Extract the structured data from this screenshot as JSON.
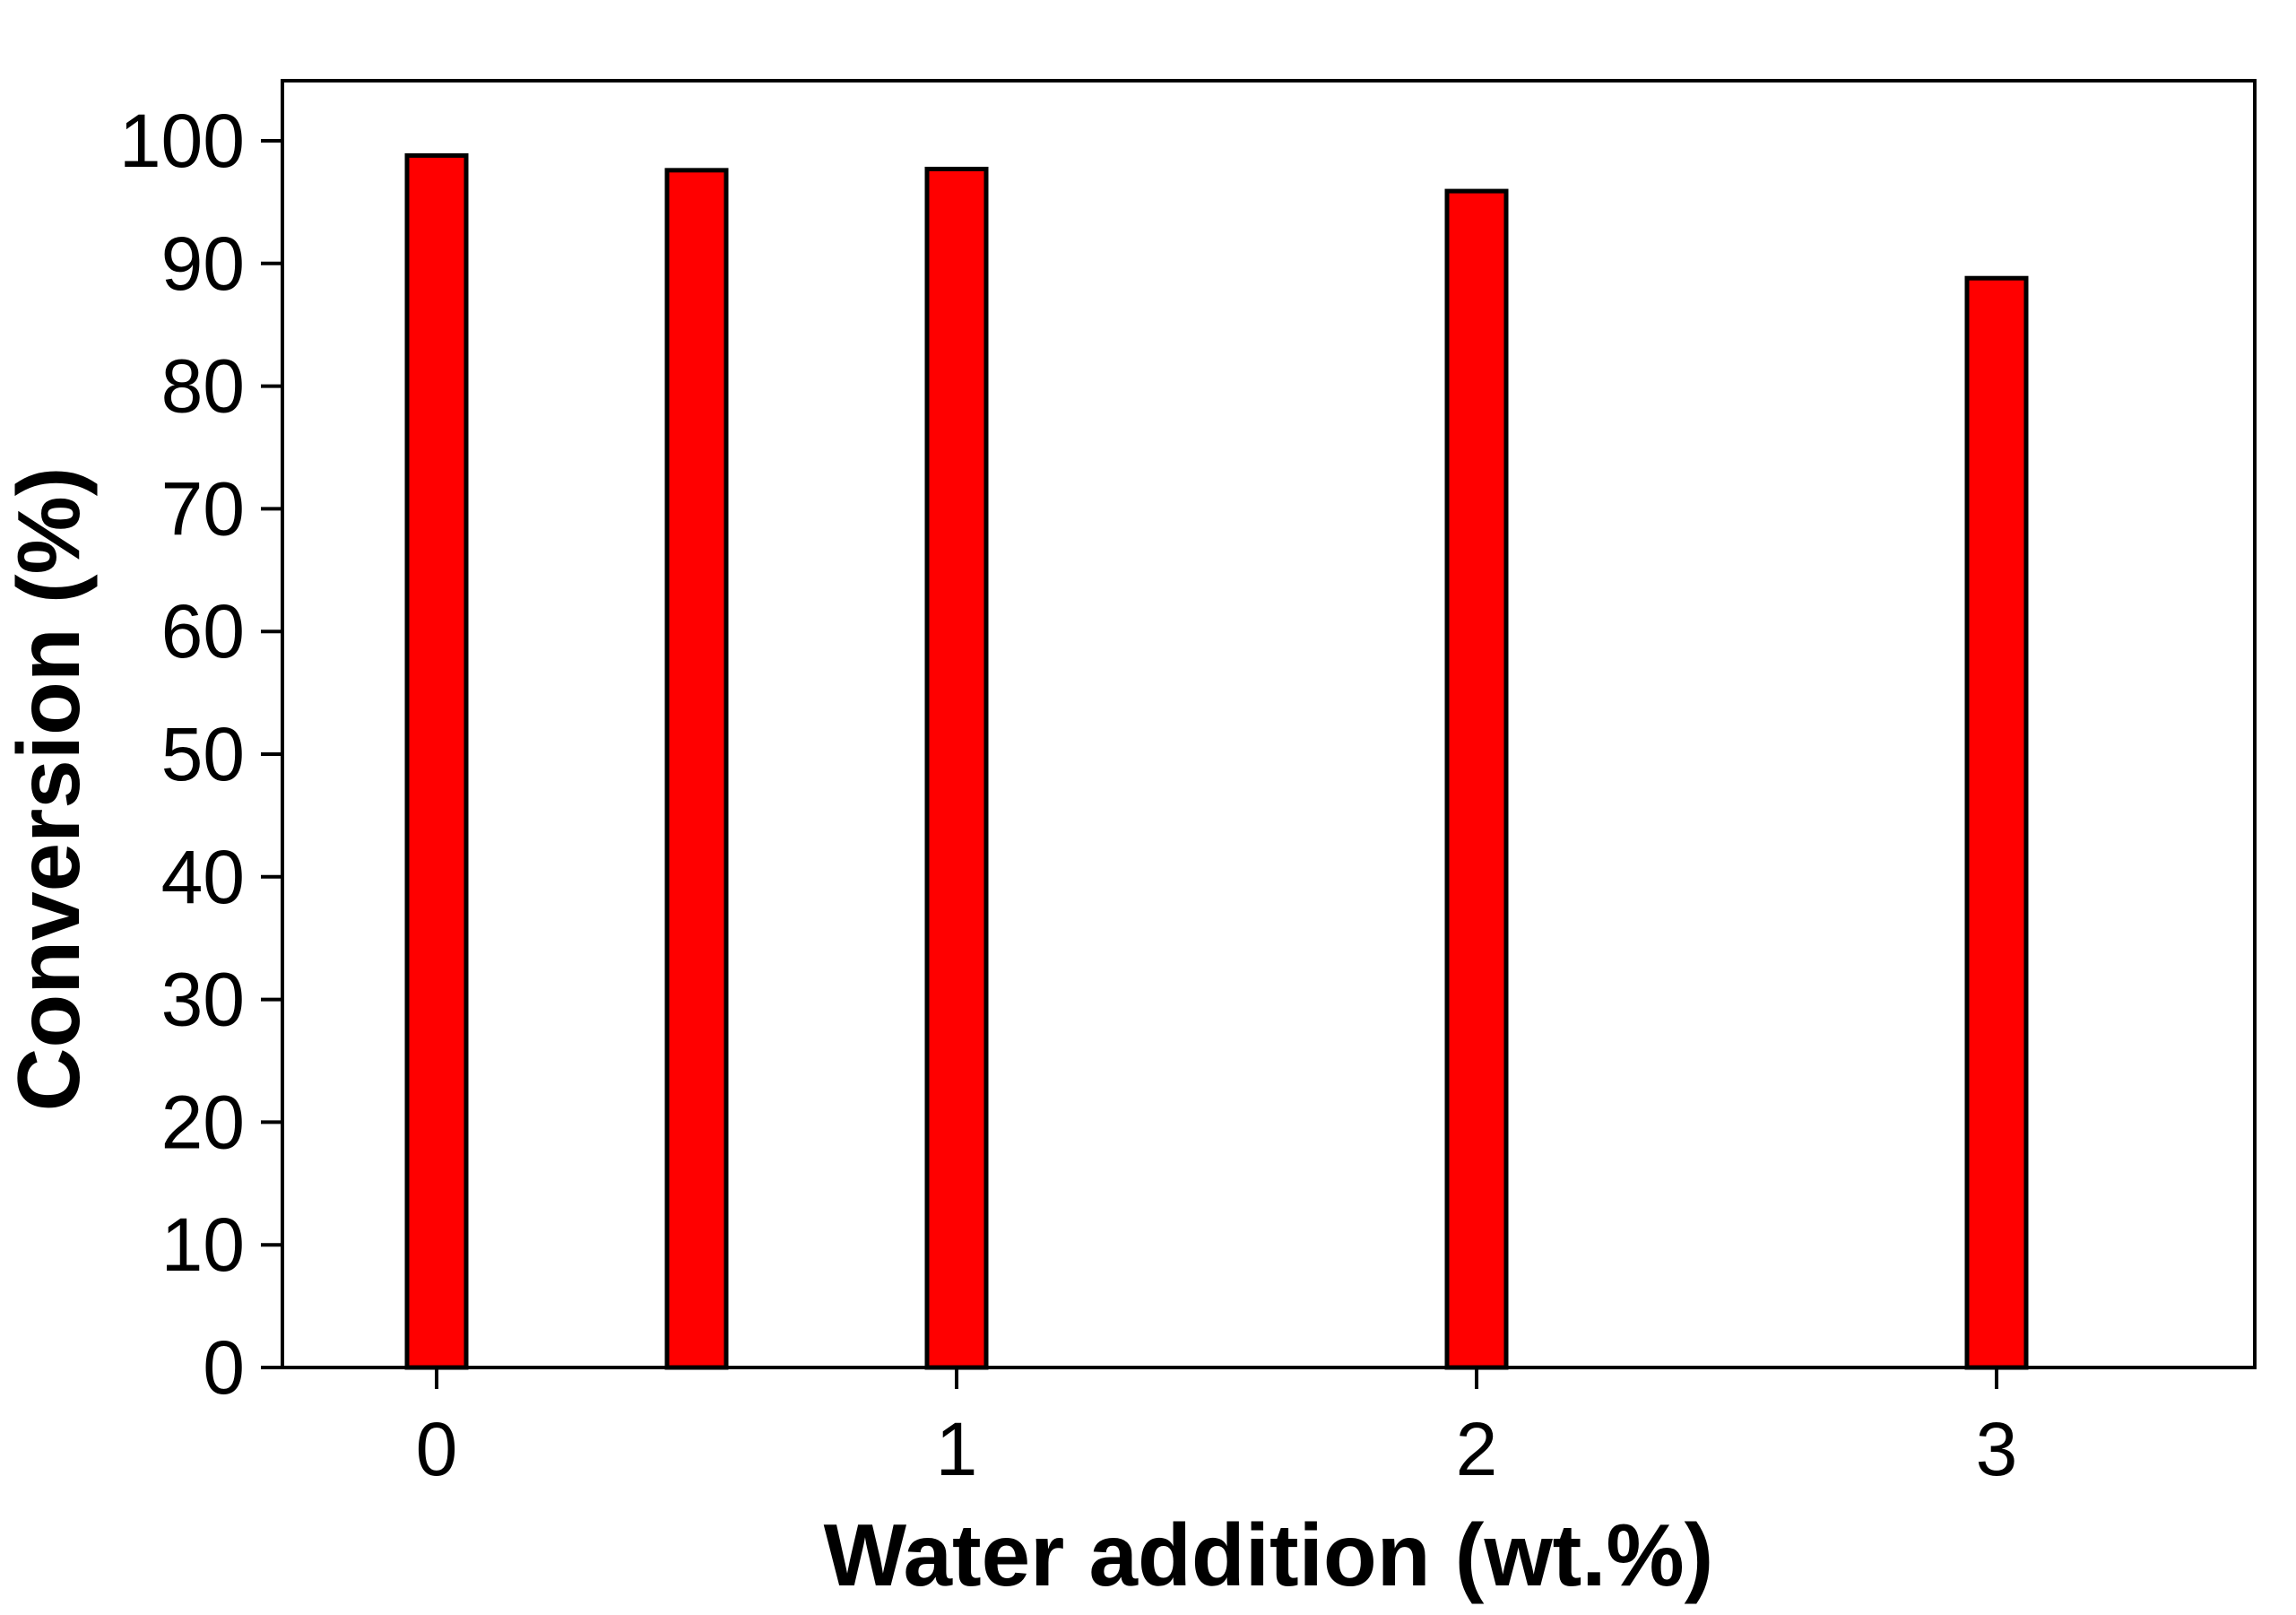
{
  "chart_data": {
    "type": "bar",
    "title": "",
    "xlabel": "Water addition (wt.%)",
    "ylabel": "Conversion (%)",
    "x": [
      0,
      0.5,
      1,
      2,
      3
    ],
    "values": [
      98.8,
      97.6,
      97.7,
      95.9,
      88.8
    ],
    "xlim": [
      -0.3,
      3.5
    ],
    "ylim": [
      0,
      105
    ],
    "x_ticks": [
      0,
      1,
      2,
      3
    ],
    "x_tick_labels": [
      "0",
      "1",
      "2",
      "3"
    ],
    "y_ticks": [
      0,
      10,
      20,
      30,
      40,
      50,
      60,
      70,
      80,
      90,
      100
    ],
    "y_tick_labels": [
      "0",
      "10",
      "20",
      "30",
      "40",
      "50",
      "60",
      "70",
      "80",
      "90",
      "100"
    ],
    "bar_color": "#ff0000",
    "bar_edge_color": "#000000",
    "grid": false,
    "legend": "none"
  }
}
